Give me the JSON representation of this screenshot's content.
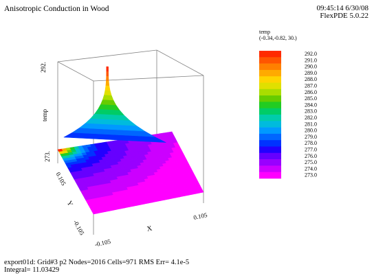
{
  "header": {
    "title": "Anisotropic Conduction in Wood",
    "timestamp": "09:45:14 6/30/08",
    "software": "FlexPDE 5.0.22"
  },
  "legend": {
    "variable": "temp",
    "view_point": "(-0.34,-0.82, 30.)",
    "levels": [
      292.0,
      291.0,
      290.0,
      289.0,
      288.0,
      287.0,
      286.0,
      285.0,
      284.0,
      283.0,
      282.0,
      281.0,
      280.0,
      279.0,
      278.0,
      277.0,
      276.0,
      275.0,
      274.0,
      273.0
    ],
    "level_labels": [
      "292.0",
      "291.0",
      "290.0",
      "289.0",
      "288.0",
      "287.0",
      "286.0",
      "285.0",
      "284.0",
      "283.0",
      "282.0",
      "281.0",
      "280.0",
      "279.0",
      "278.0",
      "277.0",
      "276.0",
      "275.0",
      "274.0",
      "273.0"
    ],
    "colors": [
      "#ff2a00",
      "#ff5500",
      "#ff8000",
      "#ffaa00",
      "#ffd400",
      "#e0e000",
      "#aadd00",
      "#66cc00",
      "#22cc22",
      "#00cc66",
      "#00ccaa",
      "#00bbdd",
      "#0099ff",
      "#0066ff",
      "#0033ff",
      "#2200ff",
      "#6600ff",
      "#9900ff",
      "#cc00ff",
      "#ff00ff"
    ]
  },
  "footer": {
    "line1": "export01d:  Grid#3  p2  Nodes=2016 Cells=971 RMS Err= 4.1e-5",
    "line2": "Integral=  11.03429"
  },
  "chart_data": {
    "type": "surface",
    "title": "Anisotropic Conduction in Wood",
    "zlabel": "temp",
    "xlabel": "X",
    "ylabel": "Y",
    "z_tick_labels": [
      "292.",
      "273."
    ],
    "x_tick_labels": [
      "-0.105",
      "0.105"
    ],
    "y_tick_labels": [
      "-0.105",
      "0.105"
    ],
    "zlim": [
      273,
      292
    ],
    "xlim": [
      -0.105,
      0.105
    ],
    "ylim": [
      -0.105,
      0.105
    ],
    "peak": {
      "x": -0.105,
      "y": 0.105,
      "z": 292
    },
    "view_point": [
      -0.34,
      -0.82,
      30.0
    ]
  }
}
